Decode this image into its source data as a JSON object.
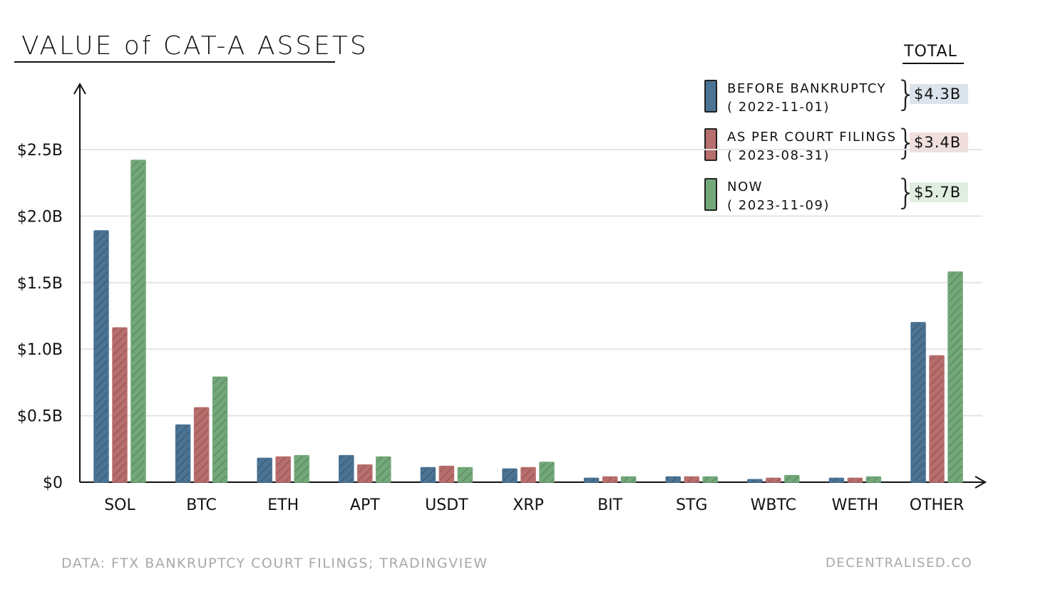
{
  "header": {
    "title": "VALUE of CAT-A ASSETS",
    "total_label": "TOTAL"
  },
  "legend": [
    {
      "line1": "BEFORE BANKRUPTCY",
      "line2": "( 2022-11-01)",
      "total": "$4.3B",
      "color": "#4a7394",
      "tint": "#dbe4ec"
    },
    {
      "line1": "AS PER COURT FILINGS",
      "line2": "( 2023-08-31)",
      "total": "$3.4B",
      "color": "#b86e6c",
      "tint": "#f1dfde"
    },
    {
      "line1": "NOW",
      "line2": "( 2023-11-09)",
      "total": "$5.7B",
      "color": "#73a87a",
      "tint": "#e0eee2"
    }
  ],
  "footer": {
    "source": "DATA: FTX BANKRUPTCY COURT FILINGS; TRADINGVIEW",
    "brand": "DECENTRALISED.CO"
  },
  "chart_data": {
    "type": "bar",
    "title": "VALUE of CAT-A ASSETS",
    "xlabel": "",
    "ylabel": "",
    "ylim": [
      0,
      2.5
    ],
    "yticks": [
      0,
      0.5,
      1.0,
      1.5,
      2.0,
      2.5
    ],
    "ytick_labels": [
      "$0",
      "$0.5B",
      "$1.0B",
      "$1.5B",
      "$2.0B",
      "$2.5B"
    ],
    "grid": true,
    "legend_position": "top-right",
    "categories": [
      "SOL",
      "BTC",
      "ETH",
      "APT",
      "USDT",
      "XRP",
      "BIT",
      "STG",
      "WBTC",
      "WETH",
      "OTHER"
    ],
    "series": [
      {
        "name": "BEFORE BANKRUPTCY ( 2022-11-01)",
        "color": "#4a7394",
        "values": [
          1.89,
          0.43,
          0.18,
          0.2,
          0.11,
          0.1,
          0.03,
          0.04,
          0.02,
          0.03,
          1.2
        ]
      },
      {
        "name": "AS PER COURT FILINGS ( 2023-08-31)",
        "color": "#b86e6c",
        "values": [
          1.16,
          0.56,
          0.19,
          0.13,
          0.12,
          0.11,
          0.04,
          0.04,
          0.03,
          0.03,
          0.95
        ]
      },
      {
        "name": "NOW ( 2023-11-09)",
        "color": "#73a87a",
        "values": [
          2.42,
          0.79,
          0.2,
          0.19,
          0.11,
          0.15,
          0.04,
          0.04,
          0.05,
          0.04,
          1.58
        ]
      }
    ]
  }
}
